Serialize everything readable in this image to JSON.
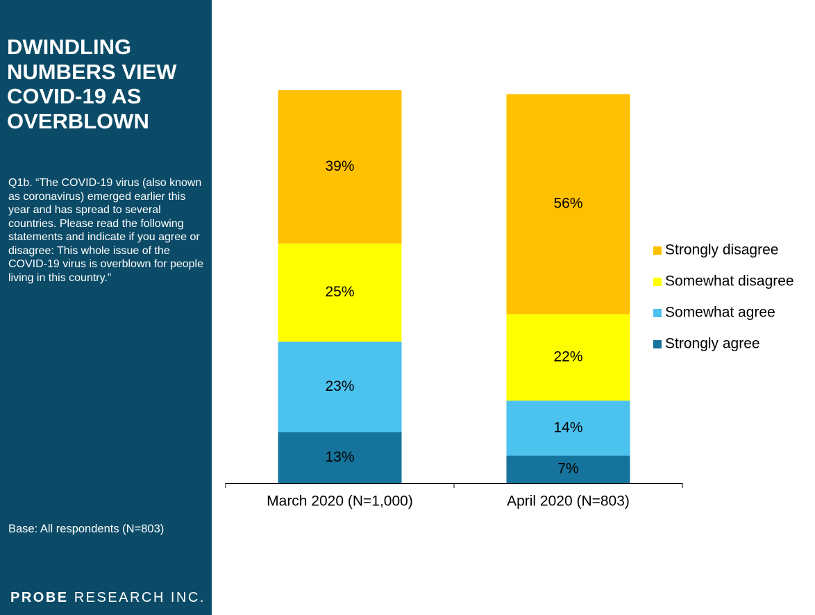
{
  "sidebar": {
    "title": "DWINDLING NUMBERS VIEW COVID-19 AS OVERBLOWN",
    "question": "Q1b. “The COVID-19 virus (also known as coronavirus) emerged earlier this year and has spread to several countries. Please read the following statements and indicate if you agree or disagree: This whole issue of the COVID-19 virus is overblown for people living in this country.”",
    "base": "Base: All respondents (N=803)",
    "logo_brand": "PROBE",
    "logo_rest": "RESEARCH INC."
  },
  "chart_data": {
    "type": "stacked_bar",
    "categories": [
      "March 2020 (N=1,000)",
      "April 2020 (N=803)"
    ],
    "series": [
      {
        "name": "Strongly agree",
        "color": "#15739c",
        "values": [
          13,
          7
        ],
        "value_labels": [
          "13%",
          "7%"
        ]
      },
      {
        "name": "Somewhat agree",
        "color": "#4cc2ee",
        "values": [
          23,
          14
        ],
        "value_labels": [
          "23%",
          "14%"
        ]
      },
      {
        "name": "Somewhat disagree",
        "color": "#ffff00",
        "values": [
          25,
          22
        ],
        "value_labels": [
          "25%",
          "22%"
        ]
      },
      {
        "name": "Strongly disagree",
        "color": "#ffc000",
        "values": [
          39,
          56
        ],
        "value_labels": [
          "39%",
          "56%"
        ]
      }
    ],
    "ylim": [
      0,
      100
    ],
    "legend": "right"
  }
}
